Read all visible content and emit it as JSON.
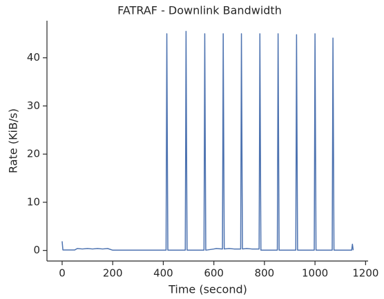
{
  "chart_data": {
    "type": "line",
    "title": "FATRAF - Downlink Bandwidth",
    "x_label": "Time (second)",
    "y_label": "Rate (KiB/s)",
    "x": [
      0,
      3,
      50,
      60,
      80,
      100,
      120,
      140,
      160,
      180,
      200,
      300,
      411,
      414,
      418,
      487,
      490,
      494,
      561,
      564,
      568,
      600,
      610,
      634,
      637,
      641,
      660,
      680,
      706,
      709,
      713,
      730,
      750,
      779,
      782,
      786,
      851,
      854,
      858,
      924,
      927,
      931,
      997,
      1000,
      1004,
      1068,
      1071,
      1075,
      1145,
      1148,
      1151
    ],
    "series": [
      {
        "name": "Downlink",
        "color": "#4c72b0",
        "values": [
          1.9,
          0.1,
          0.1,
          0.4,
          0.3,
          0.4,
          0.3,
          0.4,
          0.3,
          0.4,
          0.05,
          0.05,
          0.05,
          45,
          0.05,
          0.05,
          45.5,
          0.05,
          0.05,
          45,
          0.05,
          0.3,
          0.4,
          0.3,
          45,
          0.3,
          0.4,
          0.3,
          0.3,
          45,
          0.3,
          0.4,
          0.3,
          0.3,
          45,
          0.05,
          0.05,
          45,
          0.05,
          0.05,
          44.8,
          0.05,
          0.05,
          45,
          0.05,
          0.05,
          44.1,
          0.05,
          0.05,
          1.3,
          0.05
        ]
      }
    ],
    "xlim": [
      -60,
      1210
    ],
    "ylim": [
      -2.2,
      47.7
    ],
    "xticks": [
      0,
      200,
      400,
      600,
      800,
      1000,
      1200
    ],
    "yticks": [
      0,
      10,
      20,
      30,
      40
    ]
  }
}
